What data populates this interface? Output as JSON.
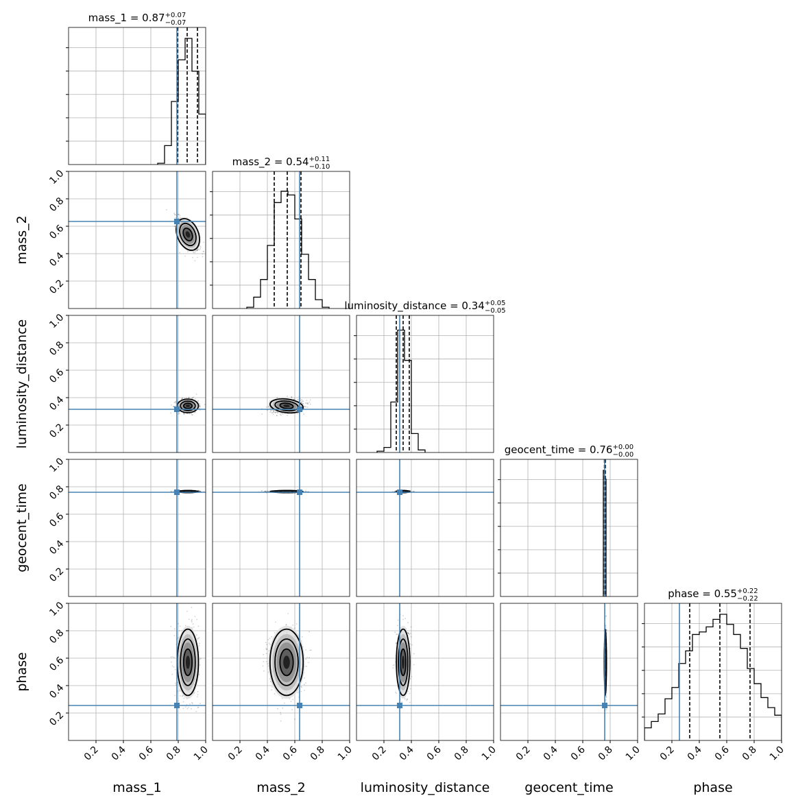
{
  "chart_data": {
    "type": "corner",
    "parameters": [
      "mass_1",
      "mass_2",
      "luminosity_distance",
      "geocent_time",
      "phase"
    ],
    "axis_range": [
      0,
      1
    ],
    "tick_values": [
      0.2,
      0.4,
      0.6,
      0.8,
      1.0
    ],
    "tick_labels": [
      "0.2",
      "0.4",
      "0.6",
      "0.8",
      "1.0"
    ],
    "grid": true,
    "truths": [
      0.79,
      0.635,
      0.315,
      0.76,
      0.255
    ],
    "truth_color": "#4682b4",
    "titles": [
      {
        "name": "mass_1",
        "value": "0.87",
        "plus": "+0.07",
        "minus": "−0.07"
      },
      {
        "name": "mass_2",
        "value": "0.54",
        "plus": "+0.11",
        "minus": "−0.10"
      },
      {
        "name": "luminosity_distance",
        "value": "0.34",
        "plus": "+0.05",
        "minus": "−0.05"
      },
      {
        "name": "geocent_time",
        "value": "0.76",
        "plus": "+0.00",
        "minus": "−0.00"
      },
      {
        "name": "phase",
        "value": "0.55",
        "plus": "+0.22",
        "minus": "−0.22"
      }
    ],
    "quantiles": [
      [
        0.795,
        0.865,
        0.94
      ],
      [
        0.45,
        0.545,
        0.645
      ],
      [
        0.29,
        0.34,
        0.385
      ],
      [
        0.758,
        0.762,
        0.765
      ],
      [
        0.33,
        0.55,
        0.77
      ]
    ],
    "histograms": [
      {
        "bins": [
          [
            0.65,
            0.7,
            0.01
          ],
          [
            0.7,
            0.75,
            0.15
          ],
          [
            0.75,
            0.8,
            0.5
          ],
          [
            0.8,
            0.85,
            0.83
          ],
          [
            0.85,
            0.9,
            1.0
          ],
          [
            0.9,
            0.95,
            0.74
          ],
          [
            0.95,
            1.0,
            0.4
          ]
        ]
      },
      {
        "bins": [
          [
            0.25,
            0.3,
            0.01
          ],
          [
            0.3,
            0.35,
            0.09
          ],
          [
            0.35,
            0.4,
            0.23
          ],
          [
            0.4,
            0.45,
            0.5
          ],
          [
            0.45,
            0.5,
            0.84
          ],
          [
            0.5,
            0.55,
            0.93
          ],
          [
            0.55,
            0.6,
            0.9
          ],
          [
            0.6,
            0.65,
            0.71
          ],
          [
            0.65,
            0.7,
            0.43
          ],
          [
            0.7,
            0.75,
            0.23
          ],
          [
            0.75,
            0.8,
            0.07
          ],
          [
            0.8,
            0.85,
            0.01
          ]
        ]
      },
      {
        "bins": [
          [
            0.15,
            0.2,
            0.01
          ],
          [
            0.2,
            0.25,
            0.04
          ],
          [
            0.25,
            0.3,
            0.4
          ],
          [
            0.3,
            0.35,
            0.97
          ],
          [
            0.35,
            0.4,
            0.73
          ],
          [
            0.4,
            0.45,
            0.15
          ],
          [
            0.45,
            0.5,
            0.02
          ]
        ]
      },
      {
        "bins": [
          [
            0.75,
            0.76,
            1.0
          ],
          [
            0.76,
            0.77,
            0.93
          ]
        ]
      },
      {
        "bins": [
          [
            0.0,
            0.05,
            0.1
          ],
          [
            0.05,
            0.1,
            0.15
          ],
          [
            0.1,
            0.15,
            0.21
          ],
          [
            0.15,
            0.2,
            0.33
          ],
          [
            0.2,
            0.25,
            0.42
          ],
          [
            0.25,
            0.3,
            0.61
          ],
          [
            0.3,
            0.35,
            0.71
          ],
          [
            0.35,
            0.4,
            0.84
          ],
          [
            0.4,
            0.45,
            0.86
          ],
          [
            0.45,
            0.5,
            0.9
          ],
          [
            0.5,
            0.55,
            0.96
          ],
          [
            0.55,
            0.6,
            1.0
          ],
          [
            0.6,
            0.65,
            0.92
          ],
          [
            0.65,
            0.7,
            0.84
          ],
          [
            0.7,
            0.75,
            0.73
          ],
          [
            0.75,
            0.8,
            0.57
          ],
          [
            0.8,
            0.85,
            0.45
          ],
          [
            0.85,
            0.9,
            0.34
          ],
          [
            0.9,
            0.95,
            0.26
          ],
          [
            0.95,
            1.0,
            0.2
          ]
        ]
      }
    ],
    "posterior_means": [
      0.87,
      0.54,
      0.34,
      0.765,
      0.57
    ],
    "posterior_spreads": [
      0.07,
      0.11,
      0.045,
      0.006,
      0.22
    ]
  }
}
